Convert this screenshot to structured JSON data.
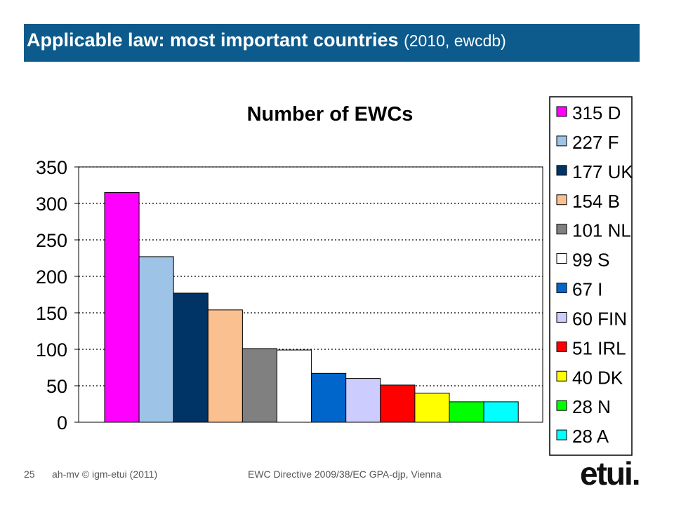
{
  "slide": {
    "title_main": "Applicable law: most important countries",
    "title_sub": "(2010, ewcdb)",
    "page_number": "25",
    "footer_left": "ah-mv © igm-etui (2011)",
    "footer_center": "EWC Directive 2009/38/EC GPA-djp, Vienna",
    "logo": "etui."
  },
  "chart_data": {
    "type": "bar",
    "title": "Number of EWCs",
    "xlabel": "",
    "ylabel": "",
    "ylim": [
      0,
      350
    ],
    "yticks": [
      0,
      50,
      100,
      150,
      200,
      250,
      300,
      350
    ],
    "grid": true,
    "legend_position": "right",
    "categories": [
      "315 D",
      "227 F",
      "177 UK",
      "154 B",
      "101 NL",
      "99 S",
      "67 I",
      "60 FIN",
      "51 IRL",
      "40 DK",
      "28 N",
      "28 A"
    ],
    "values": [
      315,
      227,
      177,
      154,
      101,
      99,
      67,
      60,
      51,
      40,
      28,
      28
    ],
    "colors": [
      "#ff00ff",
      "#9dc3e6",
      "#003366",
      "#fac090",
      "#808080",
      "#ffffff",
      "#0066cc",
      "#ccccff",
      "#ff0000",
      "#ffff00",
      "#00ff00",
      "#00ffff"
    ]
  }
}
